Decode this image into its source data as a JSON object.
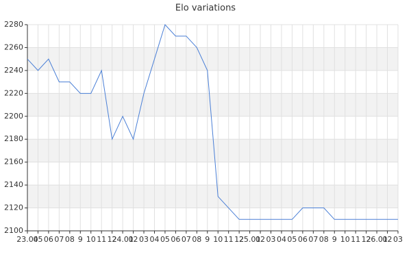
{
  "chart_data": {
    "type": "line",
    "title": "Elo variations",
    "categories": [
      "23.04",
      "05",
      "06",
      "07",
      "08",
      "9",
      "10",
      "11",
      "12",
      "24.01",
      "02",
      "03",
      "04",
      "05",
      "06",
      "07",
      "08",
      "9",
      "10",
      "11",
      "12",
      "25.01",
      "02",
      "03",
      "04",
      "05",
      "06",
      "07",
      "08",
      "9",
      "10",
      "11",
      "12",
      "26.01",
      "02",
      "03"
    ],
    "series": [
      {
        "color": "#4a7fd6",
        "values": [
          2250,
          2240,
          2250,
          2230,
          2230,
          2220,
          2220,
          2240,
          2180,
          2200,
          2180,
          2220,
          2250,
          2280,
          2270,
          2270,
          2260,
          2240,
          2130,
          2120,
          2110,
          2110,
          2110,
          2110,
          2110,
          2110,
          2120,
          2120,
          2120,
          2110,
          2110,
          2110,
          2110,
          2110,
          2110,
          2110
        ]
      }
    ],
    "ylim": [
      2100,
      2280
    ],
    "yticks": [
      2100,
      2120,
      2140,
      2160,
      2180,
      2200,
      2220,
      2240,
      2260,
      2280
    ],
    "grid": true
  }
}
